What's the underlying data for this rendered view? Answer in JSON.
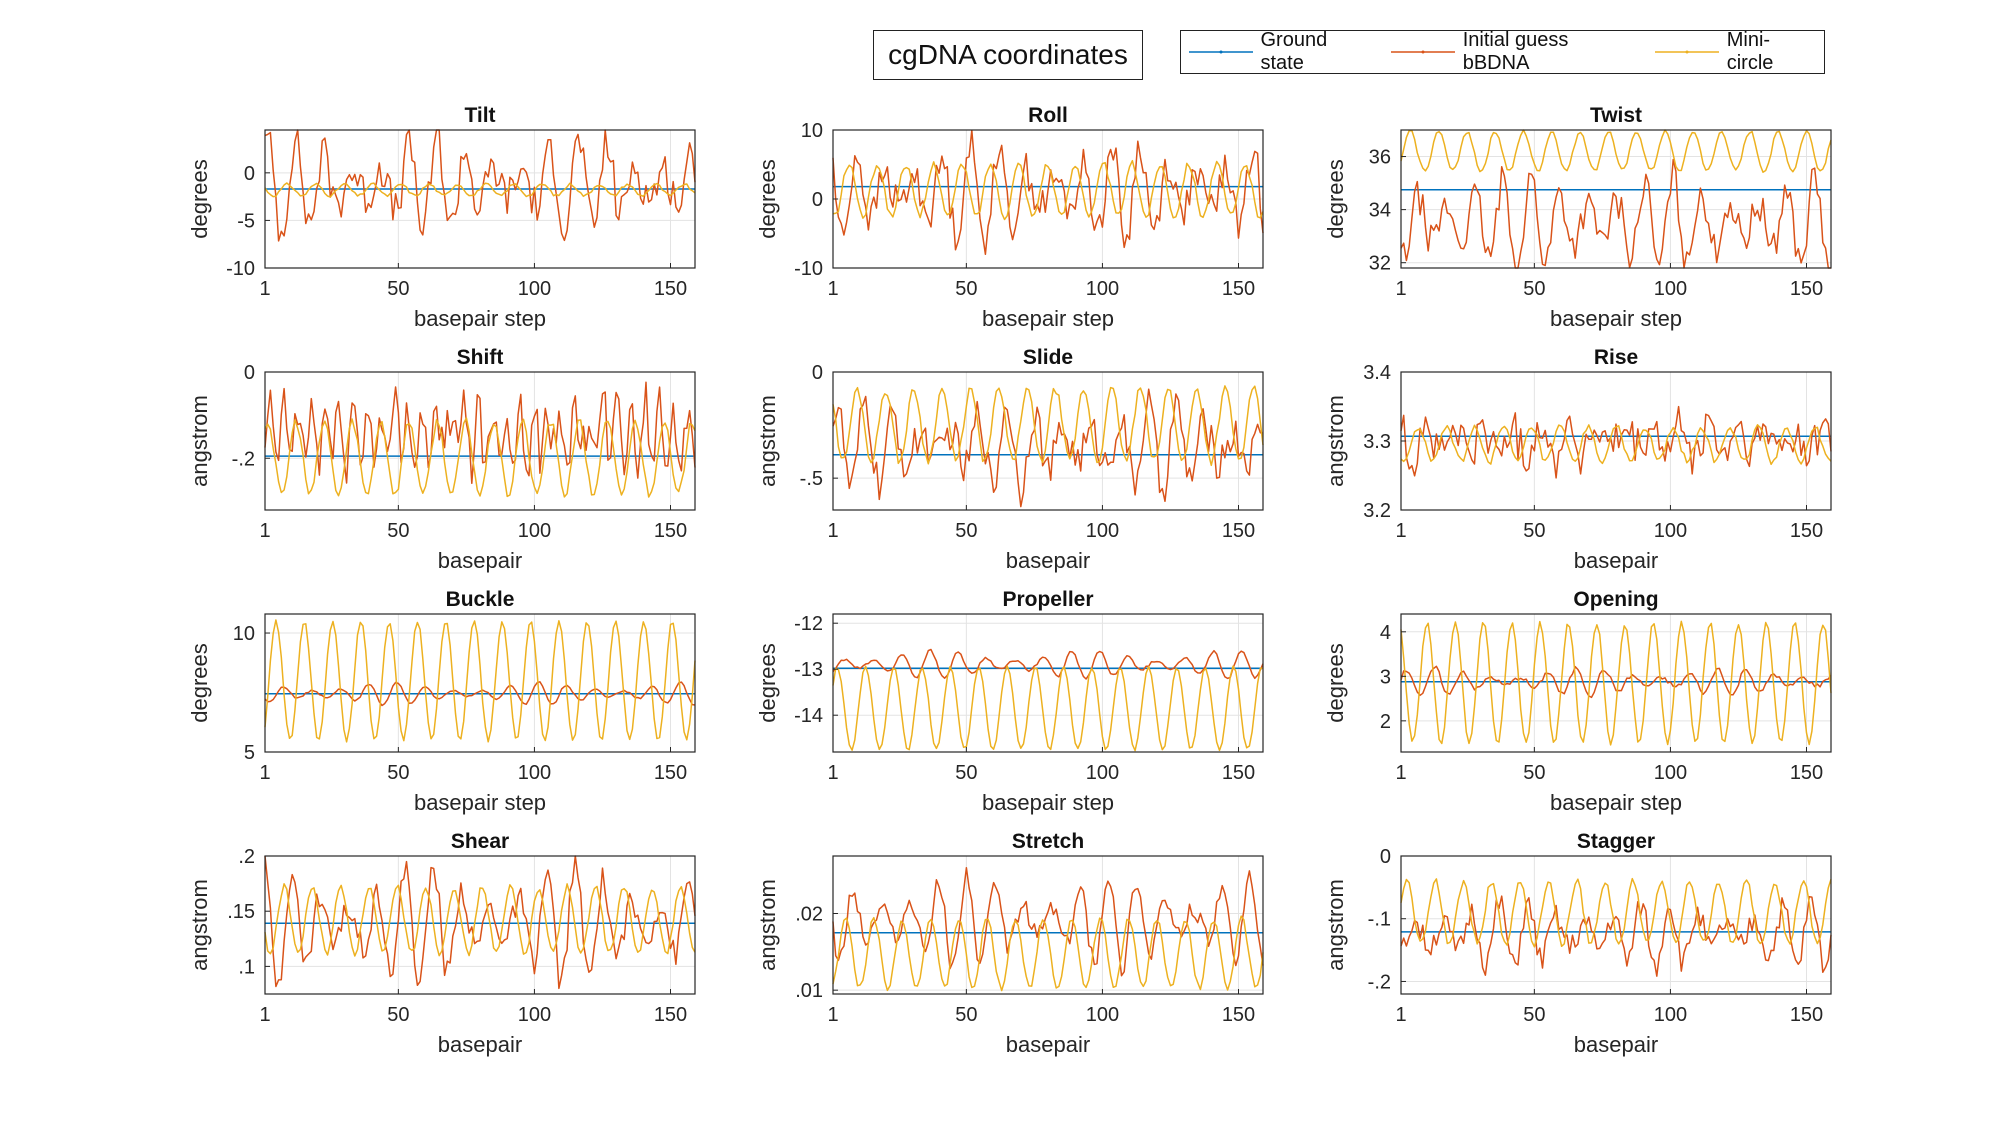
{
  "figure": {
    "title": "cgDNA coordinates",
    "legend": [
      {
        "label": "Ground state",
        "color": "#0072BD"
      },
      {
        "label": "Initial guess bBDNA",
        "color": "#D95319"
      },
      {
        "label": "Mini-circle",
        "color": "#EDB120"
      }
    ]
  },
  "chart_data": [
    {
      "type": "line",
      "title": "Tilt",
      "xlabel": "basepair step",
      "ylabel": "degrees",
      "xlim": [
        1,
        159
      ],
      "ylim": [
        -10,
        4.5
      ],
      "xticks": [
        1,
        50,
        100,
        150
      ],
      "yticks": [
        -10,
        -5,
        0
      ],
      "grid": true,
      "series": [
        {
          "name": "Ground state",
          "flat": -1.7
        },
        {
          "name": "Initial guess bBDNA",
          "mean": -1.2,
          "amp": 3.2,
          "period": 10.4,
          "jitter": 2.2,
          "burst": 0.6
        },
        {
          "name": "Mini-circle",
          "mean": -1.8,
          "amp": 0.6,
          "period": 10.4,
          "jitter": 0.15
        }
      ]
    },
    {
      "type": "line",
      "title": "Roll",
      "xlabel": "basepair step",
      "ylabel": "degrees",
      "xlim": [
        1,
        159
      ],
      "ylim": [
        -10,
        10
      ],
      "xticks": [
        1,
        50,
        100,
        150
      ],
      "yticks": [
        -10,
        0,
        10
      ],
      "grid": true,
      "series": [
        {
          "name": "Ground state",
          "flat": 1.8
        },
        {
          "name": "Initial guess bBDNA",
          "mean": 1.0,
          "amp": 4.5,
          "period": 10.4,
          "jitter": 2.5,
          "burst": 0.6
        },
        {
          "name": "Mini-circle",
          "mean": 1.3,
          "amp": 3.8,
          "period": 10.4,
          "jitter": 0.5
        }
      ]
    },
    {
      "type": "line",
      "title": "Twist",
      "xlabel": "basepair step",
      "ylabel": "degrees",
      "xlim": [
        1,
        159
      ],
      "ylim": [
        31.8,
        37
      ],
      "xticks": [
        1,
        50,
        100,
        150
      ],
      "yticks": [
        32,
        34,
        36
      ],
      "grid": true,
      "series": [
        {
          "name": "Ground state",
          "flat": 34.75
        },
        {
          "name": "Initial guess bBDNA",
          "mean": 33.5,
          "amp": 1.2,
          "period": 10.4,
          "jitter": 0.6,
          "burst": 0.5
        },
        {
          "name": "Mini-circle",
          "mean": 36.2,
          "amp": 0.75,
          "period": 10.4,
          "jitter": 0.08
        }
      ]
    },
    {
      "type": "line",
      "title": "Shift",
      "xlabel": "basepair",
      "ylabel": "angstrom",
      "xlim": [
        1,
        159
      ],
      "ylim": [
        -0.32,
        0
      ],
      "xticks": [
        1,
        50,
        100,
        150
      ],
      "yticks": [
        -0.2,
        0
      ],
      "grid": true,
      "series": [
        {
          "name": "Ground state",
          "flat": -0.195
        },
        {
          "name": "Initial guess bBDNA",
          "mean": -0.14,
          "amp": 0.06,
          "period": 5.1,
          "jitter": 0.06,
          "burst": 0.2
        },
        {
          "name": "Mini-circle",
          "mean": -0.2,
          "amp": 0.085,
          "period": 10.4,
          "jitter": 0.01
        }
      ]
    },
    {
      "type": "line",
      "title": "Slide",
      "xlabel": "basepair",
      "ylabel": "angstrom",
      "xlim": [
        1,
        159
      ],
      "ylim": [
        -0.65,
        0
      ],
      "xticks": [
        1,
        50,
        100,
        150
      ],
      "yticks": [
        -0.5,
        0
      ],
      "grid": true,
      "series": [
        {
          "name": "Ground state",
          "flat": -0.39
        },
        {
          "name": "Initial guess bBDNA",
          "mean": -0.35,
          "amp": 0.13,
          "period": 10.4,
          "jitter": 0.09,
          "burst": 0.6
        },
        {
          "name": "Mini-circle",
          "mean": -0.25,
          "amp": 0.17,
          "period": 10.4,
          "jitter": 0.02
        }
      ]
    },
    {
      "type": "line",
      "title": "Rise",
      "xlabel": "basepair",
      "ylabel": "angstrom",
      "xlim": [
        1,
        159
      ],
      "ylim": [
        3.2,
        3.4
      ],
      "xticks": [
        1,
        50,
        100,
        150
      ],
      "yticks": [
        3.2,
        3.3,
        3.4
      ],
      "grid": true,
      "series": [
        {
          "name": "Ground state",
          "flat": 3.307
        },
        {
          "name": "Initial guess bBDNA",
          "mean": 3.3,
          "amp": 0.02,
          "period": 10.4,
          "jitter": 0.03,
          "burst": 0.5
        },
        {
          "name": "Mini-circle",
          "mean": 3.295,
          "amp": 0.025,
          "period": 10.4,
          "jitter": 0.005
        }
      ]
    },
    {
      "type": "line",
      "title": "Buckle",
      "xlabel": "basepair step",
      "ylabel": "degrees",
      "xlim": [
        1,
        159
      ],
      "ylim": [
        5,
        10.8
      ],
      "xticks": [
        1,
        50,
        100,
        150
      ],
      "yticks": [
        5,
        10
      ],
      "grid": true,
      "series": [
        {
          "name": "Ground state",
          "flat": 7.45
        },
        {
          "name": "Initial guess bBDNA",
          "mean": 7.45,
          "amp": 0.3,
          "period": 10.4,
          "jitter": 0.04,
          "burst": 0.6
        },
        {
          "name": "Mini-circle",
          "mean": 8.0,
          "amp": 2.5,
          "period": 10.4,
          "jitter": 0.08
        }
      ]
    },
    {
      "type": "line",
      "title": "Propeller",
      "xlabel": "basepair step",
      "ylabel": "degrees",
      "xlim": [
        1,
        159
      ],
      "ylim": [
        -14.8,
        -11.8
      ],
      "xticks": [
        1,
        50,
        100,
        150
      ],
      "yticks": [
        -14,
        -13,
        -12
      ],
      "grid": true,
      "series": [
        {
          "name": "Ground state",
          "flat": -12.98
        },
        {
          "name": "Initial guess bBDNA",
          "mean": -12.9,
          "amp": 0.2,
          "period": 10.4,
          "jitter": 0.03,
          "burst": 0.6
        },
        {
          "name": "Mini-circle",
          "mean": -13.85,
          "amp": 0.9,
          "period": 10.4,
          "jitter": 0.03
        }
      ]
    },
    {
      "type": "line",
      "title": "Opening",
      "xlabel": "basepair step",
      "ylabel": "degrees",
      "xlim": [
        1,
        159
      ],
      "ylim": [
        1.3,
        4.4
      ],
      "xticks": [
        1,
        50,
        100,
        150
      ],
      "yticks": [
        2,
        3,
        4
      ],
      "grid": true,
      "series": [
        {
          "name": "Ground state",
          "flat": 2.88
        },
        {
          "name": "Initial guess bBDNA",
          "mean": 2.88,
          "amp": 0.2,
          "period": 10.4,
          "jitter": 0.05,
          "burst": 0.6
        },
        {
          "name": "Mini-circle",
          "mean": 2.85,
          "amp": 1.35,
          "period": 10.4,
          "jitter": 0.05
        }
      ]
    },
    {
      "type": "line",
      "title": "Shear",
      "xlabel": "basepair",
      "ylabel": "angstrom",
      "xlim": [
        1,
        159
      ],
      "ylim": [
        0.075,
        0.2
      ],
      "xticks": [
        1,
        50,
        100,
        150
      ],
      "yticks": [
        0.1,
        0.15,
        0.2
      ],
      "grid": true,
      "series": [
        {
          "name": "Ground state",
          "flat": 0.139
        },
        {
          "name": "Initial guess bBDNA",
          "mean": 0.138,
          "amp": 0.035,
          "period": 10.4,
          "jitter": 0.012,
          "burst": 0.6
        },
        {
          "name": "Mini-circle",
          "mean": 0.142,
          "amp": 0.03,
          "period": 10.4,
          "jitter": 0.003
        }
      ]
    },
    {
      "type": "line",
      "title": "Stretch",
      "xlabel": "basepair",
      "ylabel": "angstrom",
      "xlim": [
        1,
        159
      ],
      "ylim": [
        0.0095,
        0.0275
      ],
      "xticks": [
        1,
        50,
        100,
        150
      ],
      "yticks": [
        0.01,
        0.02
      ],
      "grid": true,
      "series": [
        {
          "name": "Ground state",
          "flat": 0.0175
        },
        {
          "name": "Initial guess bBDNA",
          "mean": 0.019,
          "amp": 0.004,
          "period": 10.4,
          "jitter": 0.0012,
          "burst": 0.6
        },
        {
          "name": "Mini-circle",
          "mean": 0.0148,
          "amp": 0.0045,
          "period": 10.4,
          "jitter": 0.0004
        }
      ]
    },
    {
      "type": "line",
      "title": "Stagger",
      "xlabel": "basepair",
      "ylabel": "angstrom",
      "xlim": [
        1,
        159
      ],
      "ylim": [
        -0.22,
        0
      ],
      "xticks": [
        1,
        50,
        100,
        150
      ],
      "yticks": [
        -0.2,
        -0.1,
        0
      ],
      "grid": true,
      "series": [
        {
          "name": "Ground state",
          "flat": -0.121
        },
        {
          "name": "Initial guess bBDNA",
          "mean": -0.125,
          "amp": 0.035,
          "period": 10.4,
          "jitter": 0.02,
          "burst": 0.5
        },
        {
          "name": "Mini-circle",
          "mean": -0.09,
          "amp": 0.05,
          "period": 10.4,
          "jitter": 0.006
        }
      ]
    }
  ]
}
